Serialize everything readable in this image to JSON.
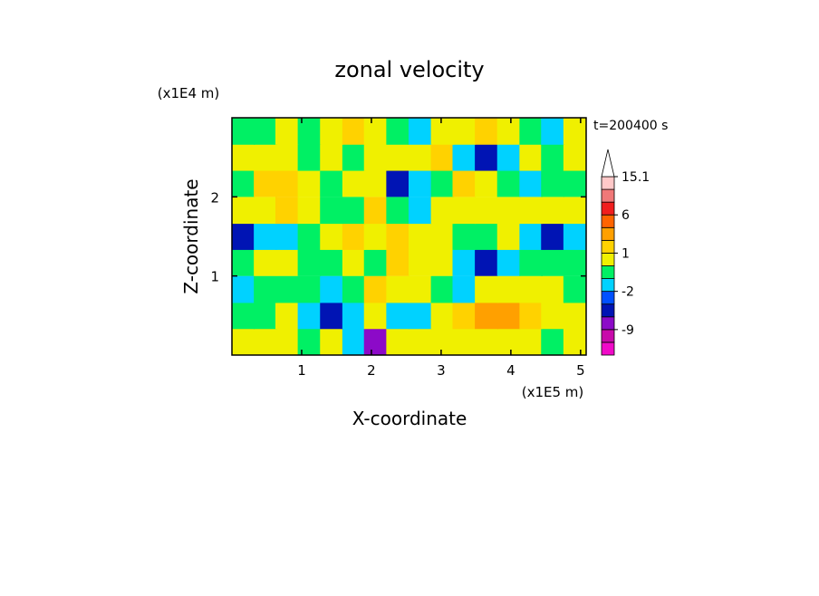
{
  "chart_data": {
    "type": "contour",
    "title": "zonal velocity",
    "x_label": "X-coordinate",
    "y_label": "Z-coordinate",
    "x_unit": "(x1E5 m)",
    "y_unit": "(x1E4 m)",
    "annotation": "t=200400 s",
    "xlim": [
      0,
      5.08
    ],
    "ylim": [
      0,
      3.0
    ],
    "xticks": [
      1,
      2,
      3,
      4,
      5
    ],
    "yticks": [
      1,
      2
    ],
    "x": [
      0.16,
      0.48,
      0.79,
      1.11,
      1.43,
      1.75,
      2.06,
      2.38,
      2.7,
      3.02,
      3.33,
      3.65,
      3.97,
      4.29,
      4.6,
      4.92
    ],
    "z": [
      0.17,
      0.5,
      0.83,
      1.17,
      1.5,
      1.83,
      2.17,
      2.5,
      2.83
    ],
    "values": [
      [
        0.5,
        0.5,
        0.5,
        -0.5,
        0.5,
        -1.5,
        -8,
        0.5,
        0.5,
        0.5,
        0.5,
        0.5,
        0.5,
        0.5,
        -1,
        0.5
      ],
      [
        -0.5,
        -0.5,
        0.5,
        -1.5,
        -4,
        -1.5,
        0.5,
        -1.5,
        -1.5,
        0.5,
        1.5,
        2.5,
        2.5,
        1.5,
        0.5,
        0.5
      ],
      [
        -1.5,
        -0.5,
        -0.5,
        -0.5,
        -1.5,
        -0.5,
        1.5,
        0.5,
        0.5,
        -0.5,
        -1.5,
        0.5,
        0.5,
        0.5,
        0.5,
        -0.5
      ],
      [
        -0.5,
        0.5,
        0.5,
        -0.5,
        -0.5,
        0.5,
        -0.5,
        1.5,
        0.5,
        0.5,
        -1.5,
        -4,
        -1.5,
        -0.5,
        -0.5,
        -0.5
      ],
      [
        -4,
        -1.5,
        -1.5,
        -0.5,
        0.5,
        1.5,
        0.5,
        1.5,
        0.5,
        0.5,
        -0.5,
        -0.5,
        0.5,
        -1.5,
        -4,
        -1.5
      ],
      [
        0.5,
        0.5,
        1.5,
        0.5,
        -0.5,
        -0.5,
        1.5,
        -0.5,
        -1.5,
        0.5,
        0.5,
        0.5,
        0.5,
        0.5,
        0.5,
        0.5
      ],
      [
        -0.5,
        1.5,
        1.5,
        0.5,
        -0.5,
        0.5,
        0.5,
        -4,
        -1.5,
        -0.5,
        1.5,
        0.5,
        -0.5,
        -1.5,
        -0.5,
        -0.5
      ],
      [
        0.5,
        0.5,
        0.5,
        -0.5,
        0.5,
        -0.5,
        0.5,
        0.5,
        0.5,
        1.5,
        -1.5,
        -4,
        -1.5,
        0.5,
        -0.5,
        0.5
      ],
      [
        -0.5,
        -0.5,
        0.5,
        -0.5,
        0.5,
        1.5,
        0.5,
        -0.5,
        -1.5,
        0.5,
        0.5,
        1.5,
        0.5,
        -0.5,
        -1.5,
        0.5
      ]
    ],
    "levels": [
      -12,
      -9,
      -6,
      -3,
      -2,
      -1,
      0,
      1,
      2,
      3,
      6,
      9,
      12,
      15.1
    ],
    "colors": [
      "#f00ac8",
      "#c80aaa",
      "#8c0ac8",
      "#0014b4",
      "#0050ff",
      "#00d2ff",
      "#00f064",
      "#f0f000",
      "#ffd200",
      "#ffa000",
      "#ff6400",
      "#f01e1e",
      "#f07878",
      "#ffc8c8"
    ],
    "over_color": "#ffffff",
    "colorbar_ticks": [
      -9,
      -2,
      1,
      6,
      15.1
    ]
  }
}
